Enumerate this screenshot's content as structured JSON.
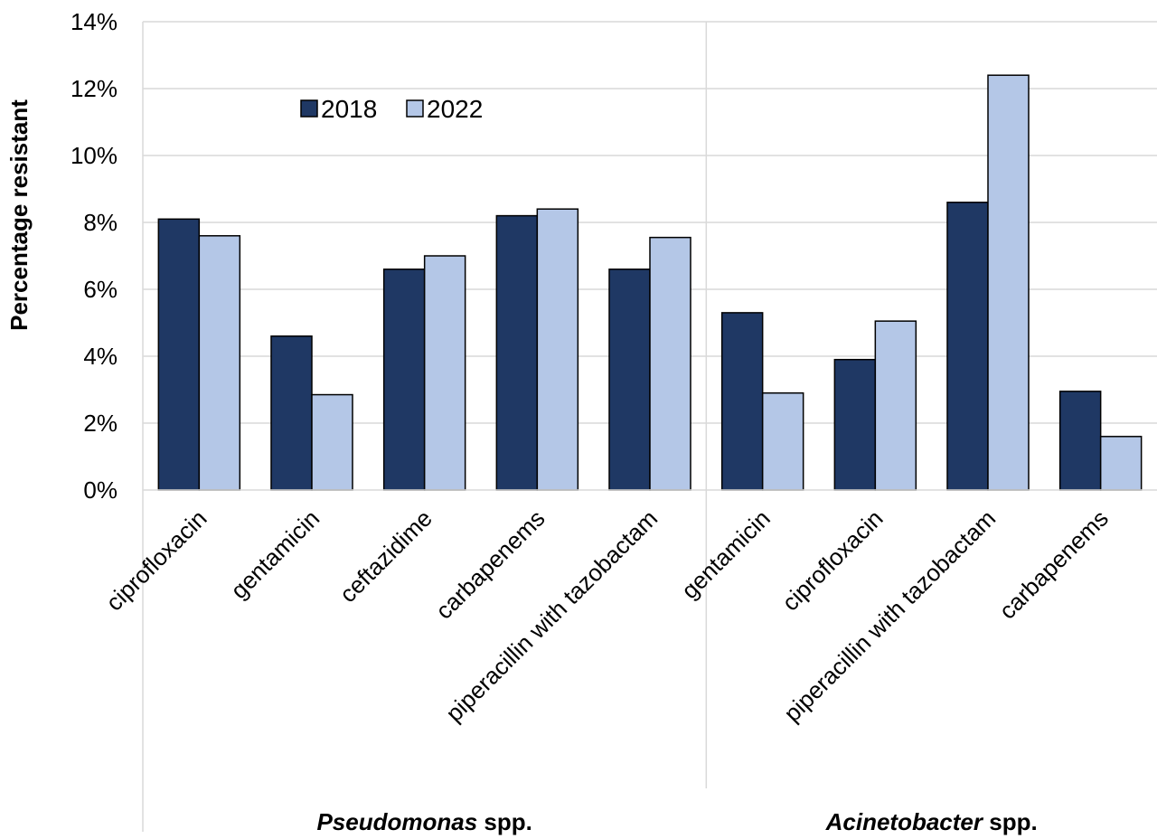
{
  "chart_data": {
    "type": "bar",
    "ylabel": "Percentage resistant",
    "ylim": [
      0,
      14
    ],
    "yticks": [
      "0%",
      "2%",
      "4%",
      "6%",
      "8%",
      "10%",
      "12%",
      "14%"
    ],
    "grid": true,
    "legend_position": "top-left",
    "groups": [
      {
        "name_italic": "Pseudomonas",
        "name_rest": " spp.",
        "count": 5
      },
      {
        "name_italic": "Acinetobacter",
        "name_rest": " spp.",
        "count": 4
      }
    ],
    "categories": [
      "ciprofloxacin",
      "gentamicin",
      "ceftazidime",
      "carbapenems",
      "piperacillin with tazobactam",
      "gentamicin",
      "ciprofloxacin",
      "piperacillin with tazobactam",
      "carbapenems"
    ],
    "series": [
      {
        "name": "2018",
        "color": "#1f3864",
        "values": [
          8.1,
          4.6,
          6.6,
          8.2,
          6.6,
          5.3,
          3.9,
          8.6,
          2.95
        ]
      },
      {
        "name": "2022",
        "color": "#b4c7e7",
        "values": [
          7.6,
          2.85,
          7.0,
          8.4,
          7.55,
          2.9,
          5.05,
          12.4,
          1.6
        ]
      }
    ]
  }
}
